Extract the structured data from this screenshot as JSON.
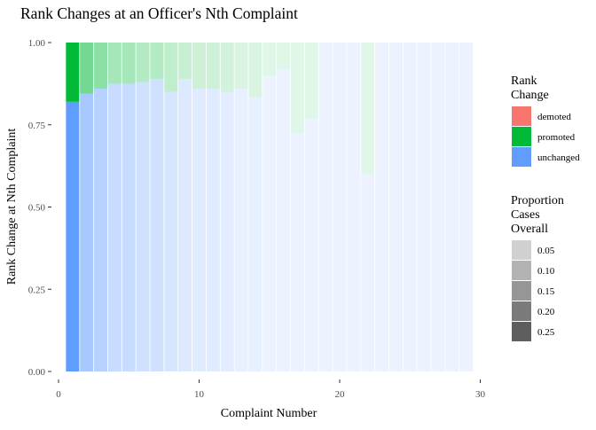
{
  "chart_data": {
    "type": "bar",
    "stacked": true,
    "title": "Rank Changes at an Officer's Nth Complaint",
    "xlabel": "Complaint Number",
    "ylabel": "Rank Change at Nth Complaint",
    "xlim": [
      0,
      30
    ],
    "ylim": [
      0,
      1
    ],
    "x_ticks": [
      0,
      10,
      20,
      30
    ],
    "y_ticks": [
      0.0,
      0.25,
      0.5,
      0.75,
      1.0
    ],
    "y_tick_labels": [
      "0.00",
      "0.25",
      "0.50",
      "0.75",
      "1.00"
    ],
    "grid": false,
    "legend_position": "right",
    "colors": {
      "demoted": "#F8766D",
      "promoted": "#00BA38",
      "unchanged": "#619CFF"
    },
    "x": [
      1,
      2,
      3,
      4,
      5,
      6,
      7,
      8,
      9,
      10,
      11,
      12,
      13,
      14,
      15,
      16,
      17,
      18,
      19,
      20,
      21,
      22,
      23,
      24,
      25,
      26,
      27,
      28,
      29
    ],
    "series": [
      {
        "name": "unchanged",
        "values": [
          0.82,
          0.845,
          0.86,
          0.875,
          0.875,
          0.88,
          0.89,
          0.85,
          0.89,
          0.86,
          0.86,
          0.85,
          0.86,
          0.835,
          0.9,
          0.92,
          0.725,
          0.77,
          1,
          1,
          1,
          0.6,
          1,
          1,
          1,
          1,
          1,
          1,
          1
        ]
      },
      {
        "name": "promoted",
        "values": [
          0.18,
          0.155,
          0.14,
          0.125,
          0.125,
          0.12,
          0.11,
          0.15,
          0.11,
          0.14,
          0.14,
          0.15,
          0.14,
          0.165,
          0.1,
          0.08,
          0.275,
          0.23,
          0,
          0,
          0,
          0.4,
          0,
          0,
          0,
          0,
          0,
          0,
          0
        ]
      },
      {
        "name": "demoted",
        "values": [
          0,
          0,
          0,
          0,
          0,
          0,
          0,
          0,
          0,
          0,
          0,
          0,
          0,
          0,
          0,
          0,
          0,
          0,
          0,
          0,
          0,
          0,
          0,
          0,
          0,
          0,
          0,
          0,
          0
        ]
      }
    ],
    "bar_alpha": [
      1,
      0.55,
      0.45,
      0.35,
      0.35,
      0.3,
      0.3,
      0.25,
      0.22,
      0.2,
      0.2,
      0.18,
      0.15,
      0.15,
      0.12,
      0.12,
      0.12,
      0.12,
      0.12,
      0.12,
      0.12,
      0.12,
      0.12,
      0.12,
      0.12,
      0.12,
      0.12,
      0.12,
      0.12
    ],
    "legend_rank": {
      "title_lines": [
        "Rank",
        "Change"
      ],
      "entries": [
        "demoted",
        "promoted",
        "unchanged"
      ]
    },
    "legend_proportion": {
      "title_lines": [
        "Proportion",
        "Cases",
        "Overall"
      ],
      "entries": [
        "0.05",
        "0.10",
        "0.15",
        "0.20",
        "0.25"
      ],
      "shades": [
        "#d0d0d0",
        "#b3b3b3",
        "#969696",
        "#7a7a7a",
        "#5e5e5e"
      ]
    }
  }
}
